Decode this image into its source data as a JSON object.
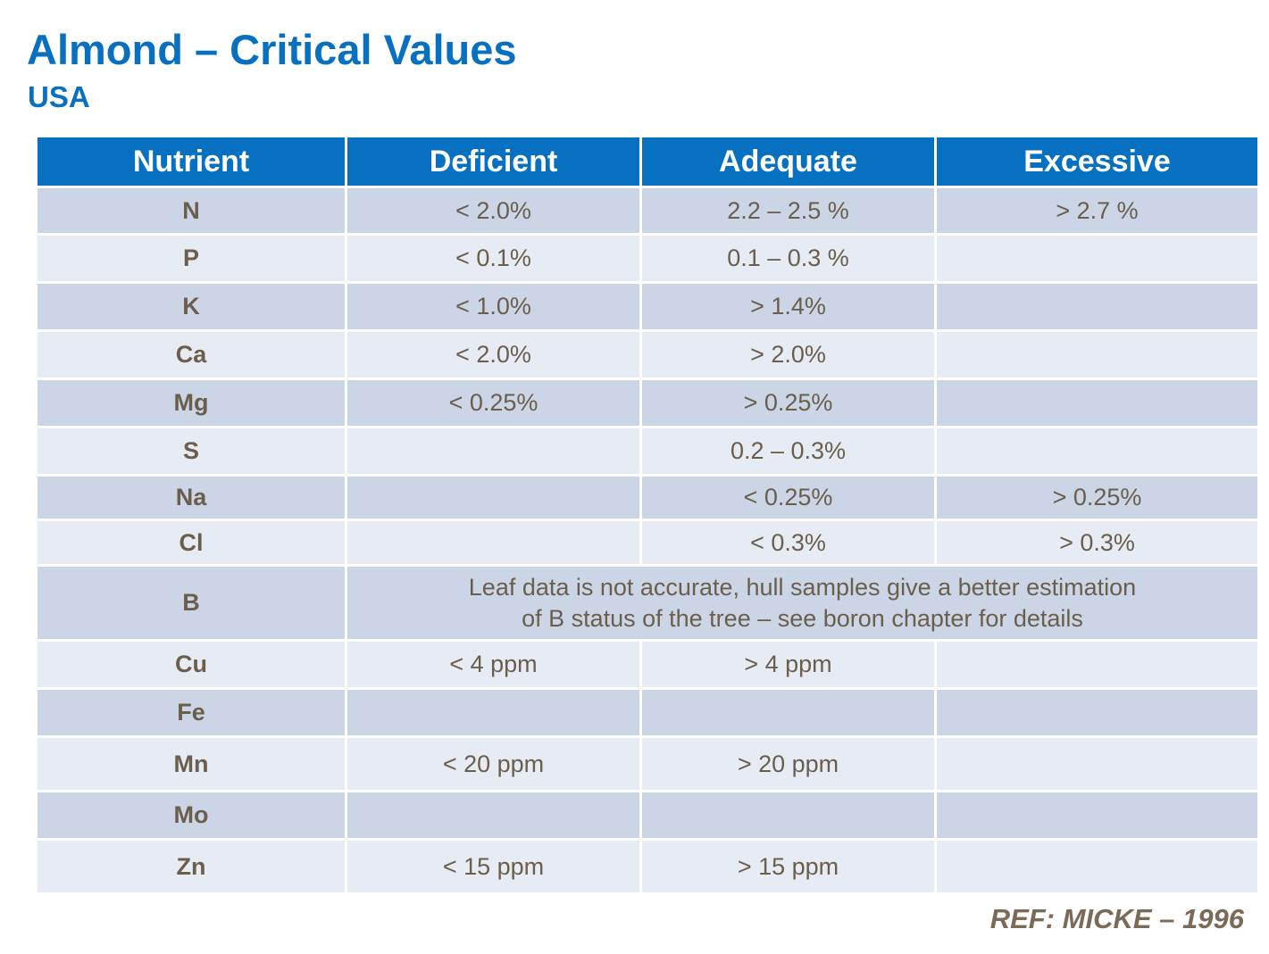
{
  "title": "Almond – Critical Values",
  "subtitle": "USA",
  "table": {
    "headers": [
      "Nutrient",
      "Deficient",
      "Adequate",
      "Excessive"
    ],
    "rows": [
      {
        "nutrient": "N",
        "deficient": "< 2.0%",
        "adequate": "2.2 – 2.5 %",
        "excessive": "> 2.7 %"
      },
      {
        "nutrient": "P",
        "deficient": "< 0.1%",
        "adequate": "0.1 – 0.3 %",
        "excessive": ""
      },
      {
        "nutrient": "K",
        "deficient": "< 1.0%",
        "adequate": "> 1.4%",
        "excessive": ""
      },
      {
        "nutrient": "Ca",
        "deficient": "< 2.0%",
        "adequate": "> 2.0%",
        "excessive": ""
      },
      {
        "nutrient": "Mg",
        "deficient": "< 0.25%",
        "adequate": "> 0.25%",
        "excessive": ""
      },
      {
        "nutrient": "S",
        "deficient": "",
        "adequate": "0.2 – 0.3%",
        "excessive": ""
      },
      {
        "nutrient": "Na",
        "deficient": "",
        "adequate": "< 0.25%",
        "excessive": "> 0.25%"
      },
      {
        "nutrient": "Cl",
        "deficient": "",
        "adequate": "< 0.3%",
        "excessive": "> 0.3%"
      },
      {
        "nutrient": "B",
        "note_line1": "Leaf data is not accurate, hull samples give a better estimation",
        "note_line2": "of B status of the tree – see boron chapter  for details"
      },
      {
        "nutrient": "Cu",
        "deficient": "< 4 ppm",
        "adequate": "> 4 ppm",
        "excessive": ""
      },
      {
        "nutrient": "Fe",
        "deficient": "",
        "adequate": "",
        "excessive": ""
      },
      {
        "nutrient": "Mn",
        "deficient": "< 20 ppm",
        "adequate": "> 20 ppm",
        "excessive": ""
      },
      {
        "nutrient": "Mo",
        "deficient": "",
        "adequate": "",
        "excessive": ""
      },
      {
        "nutrient": "Zn",
        "deficient": "< 15 ppm",
        "adequate": "> 15 ppm",
        "excessive": ""
      }
    ]
  },
  "reference": "REF:  MICKE – 1996"
}
